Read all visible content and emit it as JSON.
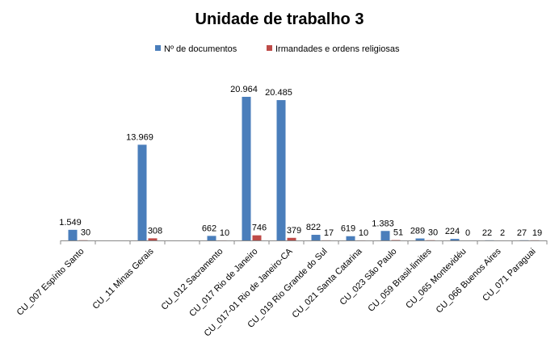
{
  "chart_data": {
    "type": "bar",
    "title": "Unidade de trabalho 3",
    "categories": [
      "CU_007 Espírito Santo",
      null,
      "CU_11 Minas Gerais",
      null,
      "CU_012 Sacramento",
      "CU_017 Rio de Janeiro",
      "CU_017-01 Rio de Janeiro-CA",
      "CU_019 Rio Grande do Sul",
      "CU_021 Santa Catarina",
      "CU_023 São Paulo",
      "CU_059 Brasil-limites",
      "CU_065 Montevidéu",
      "CU_066 Buenos Aires",
      "CU_071 Paraguai"
    ],
    "series": [
      {
        "name": "Nº de documentos",
        "color": "#4a7ebb",
        "values": [
          1549,
          null,
          13969,
          null,
          662,
          20964,
          20485,
          822,
          619,
          1383,
          289,
          224,
          22,
          27
        ],
        "value_labels": [
          "1.549",
          null,
          "13.969",
          null,
          "662",
          "20.964",
          "20.485",
          "822",
          "619",
          "1.383",
          "289",
          "224",
          "22",
          "27"
        ]
      },
      {
        "name": "Irmandades e ordens religiosas",
        "color": "#be4b48",
        "values": [
          30,
          null,
          308,
          null,
          10,
          746,
          379,
          17,
          10,
          51,
          30,
          0,
          2,
          19
        ]
      }
    ],
    "legend": "top"
  }
}
